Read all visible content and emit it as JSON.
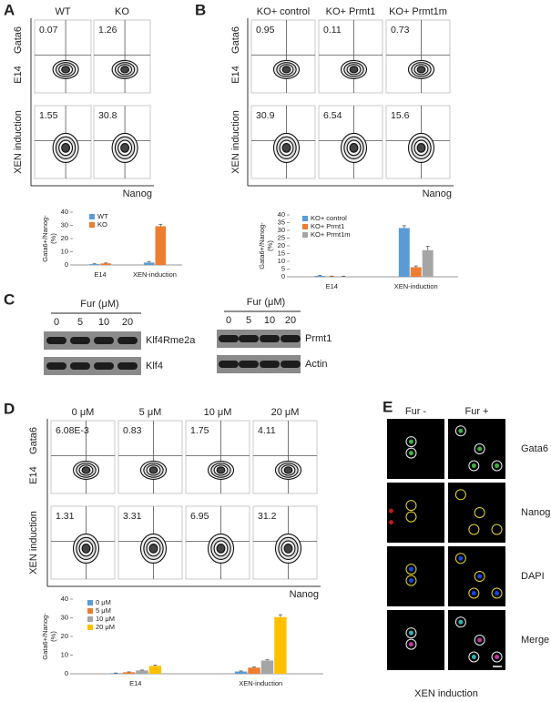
{
  "panel_labels": [
    "A",
    "B",
    "C",
    "D",
    "E"
  ],
  "flow": [
    {
      "columns": [
        "WT",
        "KO"
      ],
      "y_axis": "Gata6",
      "rows": [
        "E14",
        "XEN induction"
      ],
      "x_axis": "Nanog",
      "percentages": [
        [
          "0.07",
          "1.26"
        ],
        [
          "1.55",
          "30.8"
        ]
      ]
    },
    {
      "columns": [
        "KO+ control",
        "KO+ Prmt1",
        "KO+ Prmt1m"
      ],
      "y_axis": "Gata6",
      "rows": [
        "E14",
        "XEN induction"
      ],
      "x_axis": "Nanog",
      "percentages": [
        [
          "0.95",
          "0.11",
          "0.73"
        ],
        [
          "30.9",
          "6.54",
          "15.6"
        ]
      ]
    },
    {
      "columns": [
        "0 μM",
        "5 μM",
        "10 μM",
        "20 μM"
      ],
      "y_axis": "Gata6",
      "rows": [
        "E14",
        "XEN induction"
      ],
      "x_axis": "Nanog",
      "percentages": [
        [
          "6.08E-3",
          "0.83",
          "1.75",
          "4.11"
        ],
        [
          "1.31",
          "3.31",
          "6.95",
          "31.2"
        ]
      ]
    }
  ],
  "chart_data": [
    {
      "type": "bar",
      "ylabel": [
        "Gata6+/Nanog-",
        "(%)"
      ],
      "categories": [
        "E14",
        "XEN-induction"
      ],
      "ylim": [
        0,
        40
      ],
      "yticks": [
        0,
        10,
        20,
        30,
        40
      ],
      "series": [
        {
          "name": "WT",
          "color": "#5b9bd5",
          "values": [
            0.6,
            1.8
          ],
          "errors": [
            0.3,
            0.8
          ]
        },
        {
          "name": "KO",
          "color": "#ed7d31",
          "values": [
            1.2,
            29.3
          ],
          "errors": [
            0.3,
            1.5
          ]
        }
      ]
    },
    {
      "type": "bar",
      "ylabel": [
        "Gata6+/Nanog-",
        "(%)"
      ],
      "categories": [
        "E14",
        "XEN-induction"
      ],
      "ylim": [
        0,
        40
      ],
      "yticks": [
        0,
        5,
        10,
        15,
        20,
        25,
        30,
        35,
        40
      ],
      "series": [
        {
          "name": "KO+ control",
          "color": "#5b9bd5",
          "values": [
            0.6,
            31.5
          ],
          "errors": [
            0.2,
            1.5
          ]
        },
        {
          "name": "KO+ Prmt1",
          "color": "#ed7d31",
          "values": [
            0.3,
            6.2
          ],
          "errors": [
            0.1,
            0.8
          ]
        },
        {
          "name": "KO+ Prmt1m",
          "color": "#a5a5a5",
          "values": [
            0.3,
            17.2
          ],
          "errors": [
            0.1,
            2.5
          ]
        }
      ]
    },
    {
      "type": "bar",
      "ylabel": [
        "Gata6+/Nanog-",
        "(%)"
      ],
      "categories": [
        "E14",
        "XEN-induction"
      ],
      "ylim": [
        0,
        40
      ],
      "yticks": [
        0,
        10,
        20,
        30,
        40
      ],
      "series": [
        {
          "name": "0 μM",
          "color": "#5b9bd5",
          "values": [
            0.3,
            1.2
          ],
          "errors": [
            0.1,
            0.3
          ]
        },
        {
          "name": "5 μM",
          "color": "#ed7d31",
          "values": [
            0.8,
            3.3
          ],
          "errors": [
            0.2,
            0.4
          ]
        },
        {
          "name": "10 μM",
          "color": "#a5a5a5",
          "values": [
            1.8,
            7.1
          ],
          "errors": [
            0.2,
            0.4
          ]
        },
        {
          "name": "20 μM",
          "color": "#ffc000",
          "values": [
            4.2,
            30.4
          ],
          "errors": [
            0.4,
            1.2
          ]
        }
      ]
    }
  ],
  "blots": [
    {
      "header": "Fur (μM)",
      "lanes": [
        "0",
        "5",
        "10",
        "20"
      ],
      "bands": [
        "Klf4Rme2a",
        "Klf4"
      ]
    },
    {
      "header": "Fur (μM)",
      "lanes": [
        "0",
        "5",
        "10",
        "20"
      ],
      "bands": [
        "Prmt1",
        "Actin"
      ]
    }
  ],
  "imaging": {
    "columns": [
      "Fur -",
      "Fur +"
    ],
    "rows": [
      "Gata6",
      "Nanog",
      "DAPI",
      "Merge"
    ],
    "caption": "XEN induction"
  }
}
